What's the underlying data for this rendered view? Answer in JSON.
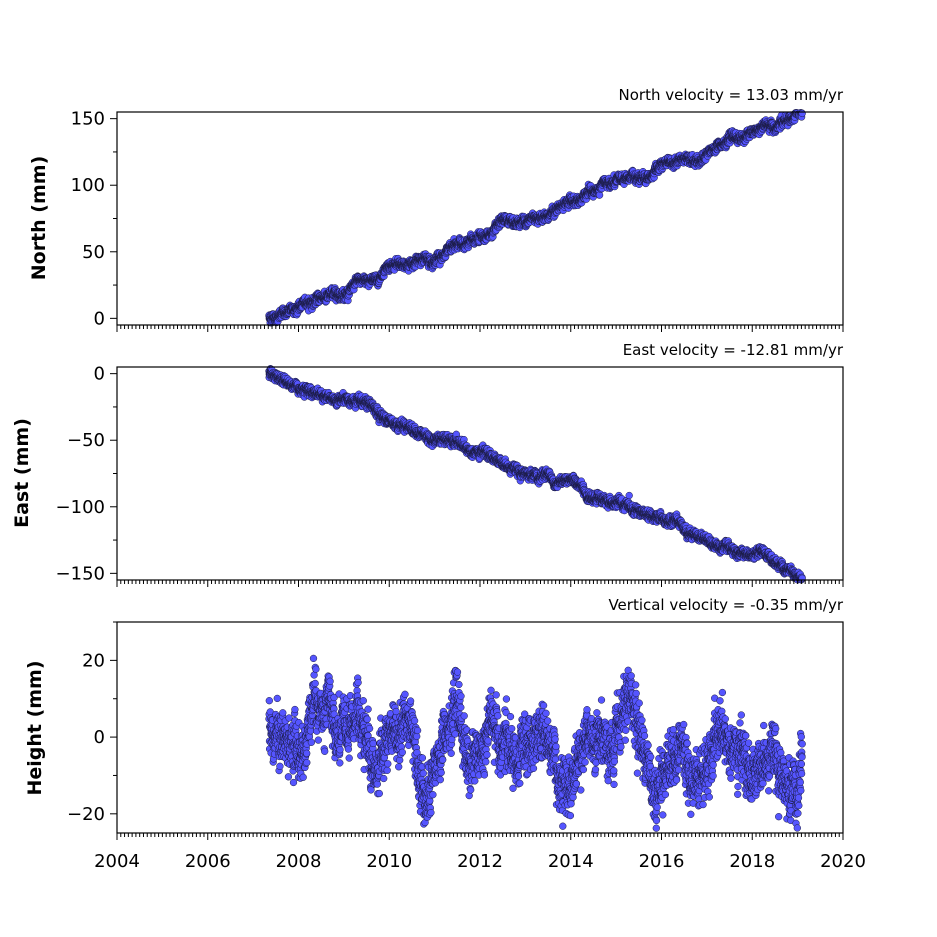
{
  "chart_data": [
    {
      "type": "scatter",
      "title": "North velocity = 13.03 mm/yr",
      "ylabel": "North (mm)",
      "xlim": [
        2004,
        2020
      ],
      "ylim": [
        -5,
        155
      ],
      "yticks": [
        0,
        50,
        100,
        150
      ],
      "ytick_labels": [
        "0",
        "50",
        "100",
        "150"
      ],
      "x_range": [
        2007.35,
        2019.1
      ],
      "trend": {
        "start": 0,
        "slope": 13.03
      },
      "scatter_sd": 1.6,
      "seasonal_amplitude": 0.5,
      "marker_color": "#5555ff"
    },
    {
      "type": "scatter",
      "title": "East velocity = -12.81 mm/yr",
      "ylabel": "East (mm)",
      "xlim": [
        2004,
        2020
      ],
      "ylim": [
        -155,
        5
      ],
      "yticks": [
        0,
        -50,
        -100,
        -150
      ],
      "ytick_labels": [
        "0",
        "−50",
        "−100",
        "−150"
      ],
      "x_range": [
        2007.35,
        2019.1
      ],
      "trend": {
        "start": 0,
        "slope": -12.81
      },
      "scatter_sd": 1.6,
      "seasonal_amplitude": 0.5,
      "marker_color": "#5555ff"
    },
    {
      "type": "scatter",
      "title": "Vertical velocity = -0.35 mm/yr",
      "ylabel": "Height (mm)",
      "xlim": [
        2004,
        2020
      ],
      "ylim": [
        -25,
        30
      ],
      "yticks": [
        20,
        0,
        -20
      ],
      "ytick_labels": [
        "20",
        "0",
        "−20"
      ],
      "xticks": [
        2004,
        2006,
        2008,
        2010,
        2012,
        2014,
        2016,
        2018,
        2020
      ],
      "xtick_labels": [
        "2004",
        "2006",
        "2008",
        "2010",
        "2012",
        "2014",
        "2016",
        "2018",
        "2020"
      ],
      "x_range": [
        2007.35,
        2019.1
      ],
      "trend": {
        "start": -1,
        "slope": -0.35
      },
      "scatter_sd": 3.2,
      "seasonal_amplitude": 5.5,
      "marker_color": "#5555ff"
    }
  ]
}
